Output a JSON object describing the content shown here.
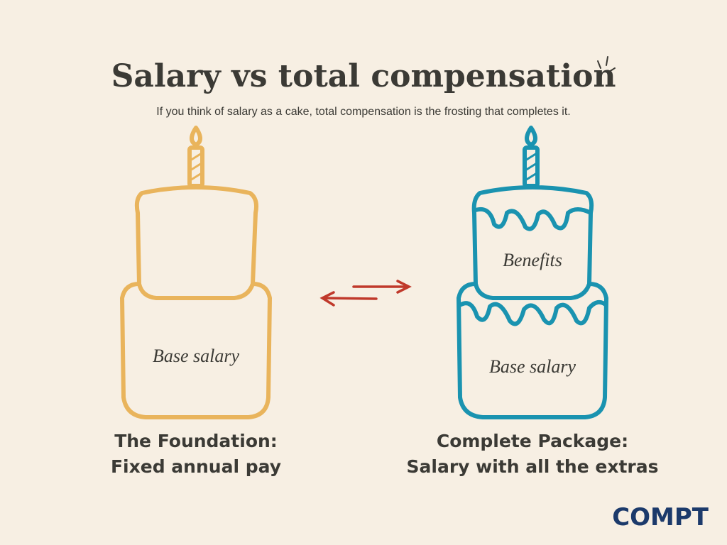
{
  "header": {
    "title": "Salary vs total compensation",
    "subtitle": "If you think of salary as a cake, total compensation is the frosting that completes it."
  },
  "cakes": [
    {
      "layers": [
        "Base salary"
      ],
      "caption": [
        "The Foundation:",
        "Fixed annual pay"
      ]
    },
    {
      "layers": [
        "Benefits",
        "Base salary"
      ],
      "caption": [
        "Complete Package:",
        "Salary with all the extras"
      ]
    }
  ],
  "logo": "COMPT"
}
